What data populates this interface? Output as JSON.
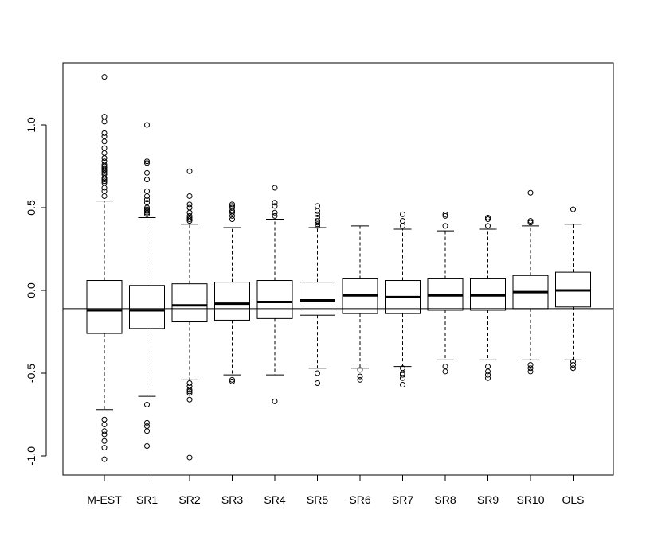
{
  "chart_data": {
    "type": "boxplot",
    "title": "",
    "xlabel": "",
    "ylabel": "",
    "ylim": [
      -1.1,
      1.35
    ],
    "yticks": [
      {
        "value": -1.0,
        "label": "-1.0"
      },
      {
        "value": -0.5,
        "label": "-0.5"
      },
      {
        "value": 0.0,
        "label": "0.0"
      },
      {
        "value": 0.5,
        "label": "0.5"
      },
      {
        "value": 1.0,
        "label": "1.0"
      }
    ],
    "reference_line": -0.11,
    "categories": [
      "M-EST",
      "SR1",
      "SR2",
      "SR3",
      "SR4",
      "SR5",
      "SR6",
      "SR7",
      "SR8",
      "SR9",
      "SR10",
      "OLS"
    ],
    "boxes": [
      {
        "lower_whisker": -0.72,
        "q1": -0.26,
        "median": -0.12,
        "q3": 0.06,
        "upper_whisker": 0.54,
        "outliers": [
          1.29,
          1.05,
          1.02,
          0.95,
          0.93,
          0.9,
          0.86,
          0.83,
          0.8,
          0.78,
          0.76,
          0.75,
          0.74,
          0.73,
          0.72,
          0.71,
          0.7,
          0.68,
          0.67,
          0.66,
          0.65,
          0.62,
          0.6,
          0.57,
          -0.78,
          -0.81,
          -0.85,
          -0.87,
          -0.91,
          -0.95,
          -1.02
        ]
      },
      {
        "lower_whisker": -0.64,
        "q1": -0.23,
        "median": -0.12,
        "q3": 0.03,
        "upper_whisker": 0.44,
        "outliers": [
          1.0,
          0.78,
          0.77,
          0.71,
          0.67,
          0.6,
          0.57,
          0.55,
          0.53,
          0.5,
          0.49,
          0.48,
          0.47,
          0.46,
          -0.69,
          -0.8,
          -0.82,
          -0.85,
          -0.94
        ]
      },
      {
        "lower_whisker": -0.54,
        "q1": -0.19,
        "median": -0.09,
        "q3": 0.04,
        "upper_whisker": 0.4,
        "outliers": [
          0.72,
          0.57,
          0.52,
          0.5,
          0.47,
          0.45,
          0.44,
          0.43,
          0.42,
          -0.56,
          -0.58,
          -0.6,
          -0.61,
          -0.62,
          -0.66,
          -1.01
        ]
      },
      {
        "lower_whisker": -0.51,
        "q1": -0.18,
        "median": -0.08,
        "q3": 0.05,
        "upper_whisker": 0.38,
        "outliers": [
          0.52,
          0.51,
          0.5,
          0.48,
          0.47,
          0.45,
          0.43,
          -0.54,
          -0.55
        ]
      },
      {
        "lower_whisker": -0.51,
        "q1": -0.17,
        "median": -0.07,
        "q3": 0.06,
        "upper_whisker": 0.43,
        "outliers": [
          0.62,
          0.53,
          0.51,
          0.47,
          0.45,
          -0.67
        ]
      },
      {
        "lower_whisker": -0.47,
        "q1": -0.15,
        "median": -0.06,
        "q3": 0.05,
        "upper_whisker": 0.38,
        "outliers": [
          0.51,
          0.48,
          0.46,
          0.44,
          0.42,
          0.41,
          0.4,
          0.39,
          -0.5,
          -0.56
        ]
      },
      {
        "lower_whisker": -0.47,
        "q1": -0.14,
        "median": -0.03,
        "q3": 0.07,
        "upper_whisker": 0.39,
        "outliers": [
          -0.48,
          -0.52,
          -0.54
        ]
      },
      {
        "lower_whisker": -0.46,
        "q1": -0.14,
        "median": -0.04,
        "q3": 0.06,
        "upper_whisker": 0.37,
        "outliers": [
          0.46,
          0.42,
          0.39,
          -0.47,
          -0.5,
          -0.51,
          -0.53,
          -0.57
        ]
      },
      {
        "lower_whisker": -0.42,
        "q1": -0.12,
        "median": -0.03,
        "q3": 0.07,
        "upper_whisker": 0.36,
        "outliers": [
          0.46,
          0.45,
          0.39,
          -0.46,
          -0.49
        ]
      },
      {
        "lower_whisker": -0.42,
        "q1": -0.12,
        "median": -0.03,
        "q3": 0.07,
        "upper_whisker": 0.37,
        "outliers": [
          0.44,
          0.43,
          0.39,
          -0.46,
          -0.49,
          -0.51,
          -0.53
        ]
      },
      {
        "lower_whisker": -0.42,
        "q1": -0.11,
        "median": -0.01,
        "q3": 0.09,
        "upper_whisker": 0.39,
        "outliers": [
          0.59,
          0.42,
          0.41,
          -0.45,
          -0.47,
          -0.49
        ]
      },
      {
        "lower_whisker": -0.42,
        "q1": -0.1,
        "median": 0.0,
        "q3": 0.11,
        "upper_whisker": 0.4,
        "outliers": [
          0.49,
          -0.43,
          -0.45,
          -0.47
        ]
      }
    ],
    "grid": false,
    "legend": "none"
  }
}
